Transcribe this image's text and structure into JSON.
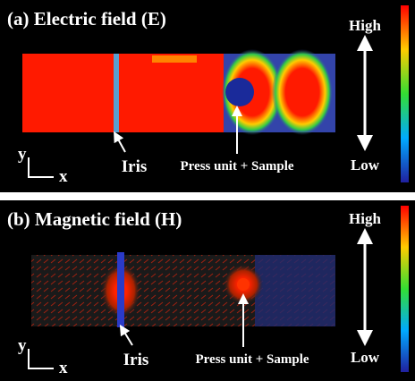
{
  "panel_a": {
    "title": "(a) Electric field (E)",
    "high": "High",
    "low": "Low",
    "axis_y": "y",
    "axis_x": "x",
    "iris": "Iris",
    "sample": "Press unit + Sample"
  },
  "panel_b": {
    "title": "(b) Magnetic field (H)",
    "high": "High",
    "low": "Low",
    "axis_y": "y",
    "axis_x": "x",
    "iris": "Iris",
    "sample": "Press unit + Sample"
  }
}
